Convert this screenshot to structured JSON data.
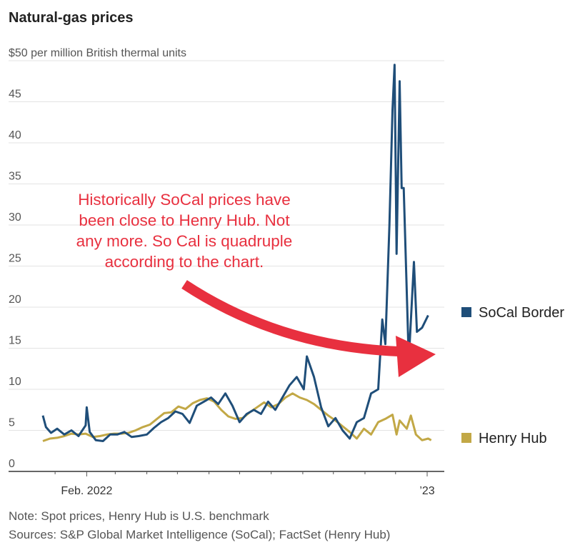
{
  "title": "Natural-gas prices",
  "colors": {
    "socal": "#1f4e79",
    "henry": "#c2a846",
    "annotation": "#e8303f"
  },
  "chart_data": {
    "type": "line",
    "title": "Natural-gas prices",
    "ylabel": "$50 per million British thermal units",
    "ylim": [
      0,
      50
    ],
    "yticks": [
      "0",
      "5",
      "10",
      "15",
      "20",
      "25",
      "30",
      "35",
      "40",
      "45"
    ],
    "top_tick_label": "$50 per million British thermal units",
    "x_tick_labels": [
      {
        "label": "Feb. 2022",
        "x": "2022-02-01"
      },
      {
        "label": "’23",
        "x": "2023-01-01"
      }
    ],
    "xlim": [
      "2021-12-20",
      "2023-01-15"
    ],
    "grid": true,
    "legend": "right",
    "series": [
      {
        "name": "SoCal Border",
        "color": "#1f4e79",
        "points": [
          [
            "2021-12-20",
            6.8
          ],
          [
            "2021-12-23",
            5.4
          ],
          [
            "2021-12-28",
            4.7
          ],
          [
            "2022-01-03",
            5.2
          ],
          [
            "2022-01-10",
            4.5
          ],
          [
            "2022-01-17",
            5.0
          ],
          [
            "2022-01-24",
            4.3
          ],
          [
            "2022-01-31",
            5.6
          ],
          [
            "2022-02-01",
            7.8
          ],
          [
            "2022-02-04",
            4.8
          ],
          [
            "2022-02-10",
            3.8
          ],
          [
            "2022-02-17",
            3.7
          ],
          [
            "2022-02-24",
            4.5
          ],
          [
            "2022-03-03",
            4.5
          ],
          [
            "2022-03-10",
            4.8
          ],
          [
            "2022-03-17",
            4.2
          ],
          [
            "2022-03-24",
            4.3
          ],
          [
            "2022-04-01",
            4.5
          ],
          [
            "2022-04-08",
            5.3
          ],
          [
            "2022-04-15",
            6.0
          ],
          [
            "2022-04-22",
            6.5
          ],
          [
            "2022-04-29",
            7.3
          ],
          [
            "2022-05-06",
            7.0
          ],
          [
            "2022-05-13",
            5.9
          ],
          [
            "2022-05-20",
            8.0
          ],
          [
            "2022-05-27",
            8.5
          ],
          [
            "2022-06-03",
            9.0
          ],
          [
            "2022-06-10",
            8.2
          ],
          [
            "2022-06-17",
            9.5
          ],
          [
            "2022-06-24",
            8.0
          ],
          [
            "2022-07-01",
            6.0
          ],
          [
            "2022-07-08",
            7.0
          ],
          [
            "2022-07-15",
            7.5
          ],
          [
            "2022-07-22",
            7.0
          ],
          [
            "2022-07-29",
            8.5
          ],
          [
            "2022-08-05",
            7.5
          ],
          [
            "2022-08-12",
            9.0
          ],
          [
            "2022-08-19",
            10.5
          ],
          [
            "2022-08-26",
            11.5
          ],
          [
            "2022-09-02",
            10.0
          ],
          [
            "2022-09-05",
            14.0
          ],
          [
            "2022-09-12",
            11.5
          ],
          [
            "2022-09-19",
            7.8
          ],
          [
            "2022-09-26",
            5.5
          ],
          [
            "2022-10-03",
            6.5
          ],
          [
            "2022-10-10",
            5.0
          ],
          [
            "2022-10-17",
            4.0
          ],
          [
            "2022-10-24",
            6.0
          ],
          [
            "2022-10-31",
            6.5
          ],
          [
            "2022-11-07",
            9.5
          ],
          [
            "2022-11-14",
            10.0
          ],
          [
            "2022-11-18",
            18.5
          ],
          [
            "2022-11-21",
            15.5
          ],
          [
            "2022-11-25",
            30.0
          ],
          [
            "2022-11-28",
            44.0
          ],
          [
            "2022-11-30",
            49.5
          ],
          [
            "2022-12-02",
            26.5
          ],
          [
            "2022-12-05",
            47.5
          ],
          [
            "2022-12-07",
            34.5
          ],
          [
            "2022-12-09",
            34.5
          ],
          [
            "2022-12-14",
            13.5
          ],
          [
            "2022-12-19",
            25.5
          ],
          [
            "2022-12-22",
            17.0
          ],
          [
            "2022-12-27",
            17.5
          ],
          [
            "2023-01-02",
            19.0
          ]
        ]
      },
      {
        "name": "Henry Hub",
        "color": "#c2a846",
        "points": [
          [
            "2021-12-20",
            3.7
          ],
          [
            "2021-12-27",
            4.0
          ],
          [
            "2022-01-03",
            4.1
          ],
          [
            "2022-01-10",
            4.3
          ],
          [
            "2022-01-17",
            4.6
          ],
          [
            "2022-01-24",
            4.5
          ],
          [
            "2022-01-31",
            4.6
          ],
          [
            "2022-02-07",
            4.2
          ],
          [
            "2022-02-14",
            4.3
          ],
          [
            "2022-02-21",
            4.5
          ],
          [
            "2022-02-28",
            4.6
          ],
          [
            "2022-03-07",
            4.6
          ],
          [
            "2022-03-14",
            4.7
          ],
          [
            "2022-03-21",
            5.0
          ],
          [
            "2022-03-28",
            5.4
          ],
          [
            "2022-04-04",
            5.7
          ],
          [
            "2022-04-11",
            6.4
          ],
          [
            "2022-04-18",
            7.1
          ],
          [
            "2022-04-25",
            7.2
          ],
          [
            "2022-05-02",
            7.9
          ],
          [
            "2022-05-09",
            7.6
          ],
          [
            "2022-05-16",
            8.3
          ],
          [
            "2022-05-23",
            8.7
          ],
          [
            "2022-05-30",
            8.9
          ],
          [
            "2022-06-06",
            8.5
          ],
          [
            "2022-06-13",
            7.5
          ],
          [
            "2022-06-20",
            6.7
          ],
          [
            "2022-06-27",
            6.4
          ],
          [
            "2022-07-04",
            6.5
          ],
          [
            "2022-07-11",
            7.2
          ],
          [
            "2022-07-18",
            7.8
          ],
          [
            "2022-07-25",
            8.4
          ],
          [
            "2022-08-01",
            7.8
          ],
          [
            "2022-08-08",
            8.2
          ],
          [
            "2022-08-15",
            9.0
          ],
          [
            "2022-08-22",
            9.5
          ],
          [
            "2022-08-29",
            9.0
          ],
          [
            "2022-09-05",
            8.7
          ],
          [
            "2022-09-12",
            8.2
          ],
          [
            "2022-09-19",
            7.5
          ],
          [
            "2022-09-26",
            6.8
          ],
          [
            "2022-10-03",
            6.2
          ],
          [
            "2022-10-10",
            5.5
          ],
          [
            "2022-10-17",
            4.8
          ],
          [
            "2022-10-24",
            4.0
          ],
          [
            "2022-10-31",
            5.2
          ],
          [
            "2022-11-07",
            4.5
          ],
          [
            "2022-11-14",
            6.0
          ],
          [
            "2022-11-21",
            6.4
          ],
          [
            "2022-11-28",
            6.9
          ],
          [
            "2022-12-02",
            4.5
          ],
          [
            "2022-12-05",
            6.2
          ],
          [
            "2022-12-12",
            5.2
          ],
          [
            "2022-12-16",
            6.8
          ],
          [
            "2022-12-21",
            4.5
          ],
          [
            "2022-12-27",
            3.8
          ],
          [
            "2023-01-02",
            4.0
          ],
          [
            "2023-01-05",
            3.8
          ]
        ]
      }
    ],
    "annotation": {
      "lines": [
        "Historically SoCal prices have",
        "been close to Henry Hub. Not",
        "any more. So Cal is quadruple",
        "according to the chart."
      ]
    }
  },
  "notes": {
    "note": "Note: Spot prices, Henry Hub is U.S. benchmark",
    "sources": "Sources: S&P Global Market Intelligence (SoCal); FactSet (Henry Hub)"
  }
}
